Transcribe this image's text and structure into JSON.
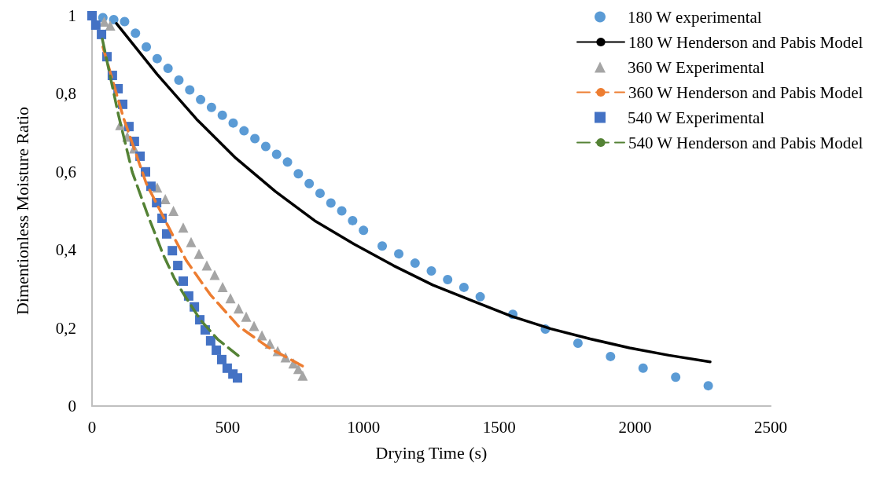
{
  "chart_data": {
    "type": "scatter",
    "xlabel": "Drying Time (s)",
    "ylabel": "Dimentionless Moisture Ratio",
    "xlim": [
      0,
      2500
    ],
    "xticks": [
      0,
      500,
      1000,
      1500,
      2000,
      2500
    ],
    "ylim": [
      0,
      1
    ],
    "yticks": [
      0,
      {
        "value": 0.2,
        "label": "0,2"
      },
      {
        "value": 0.4,
        "label": "0,4"
      },
      {
        "value": 0.6,
        "label": "0,6"
      },
      {
        "value": 0.8,
        "label": "0,8"
      },
      1
    ],
    "grid": false,
    "legend": "top right",
    "series": [
      {
        "name": "180 W experimental",
        "marker": "circle",
        "color": "#5b9bd5",
        "x": [
          40,
          80,
          120,
          160,
          200,
          240,
          280,
          320,
          360,
          400,
          440,
          480,
          520,
          560,
          600,
          640,
          680,
          720,
          760,
          800,
          840,
          880,
          920,
          960,
          1000,
          1069,
          1130,
          1190,
          1250,
          1310,
          1370,
          1430,
          1550,
          1670,
          1790,
          1910,
          2030,
          2150,
          2270
        ],
        "values": [
          0.995,
          0.99,
          0.985,
          0.955,
          0.92,
          0.89,
          0.865,
          0.835,
          0.81,
          0.785,
          0.765,
          0.745,
          0.725,
          0.705,
          0.685,
          0.665,
          0.645,
          0.625,
          0.595,
          0.57,
          0.545,
          0.52,
          0.5,
          0.475,
          0.45,
          0.41,
          0.39,
          0.366,
          0.346,
          0.324,
          0.304,
          0.28,
          0.235,
          0.197,
          0.161,
          0.127,
          0.097,
          0.074,
          0.052
        ]
      },
      {
        "name": "180 W Henderson and Pabis Model",
        "type": "line",
        "marker": "none",
        "line_style": "solid",
        "color": "#000000",
        "x": [
          90,
          240,
          385,
          530,
          675,
          820,
          965,
          1110,
          1255,
          1400,
          1545,
          1690,
          1835,
          1980,
          2125,
          2277
        ],
        "values": [
          0.98,
          0.85,
          0.735,
          0.635,
          0.55,
          0.475,
          0.415,
          0.36,
          0.31,
          0.27,
          0.23,
          0.198,
          0.172,
          0.149,
          0.13,
          0.113
        ]
      },
      {
        "name": "360 W Experimental",
        "marker": "triangle",
        "color": "#a5a5a5",
        "x": [
          45,
          67,
          104,
          130,
          155,
          240,
          270,
          300,
          336,
          365,
          394,
          423,
          452,
          481,
          510,
          540,
          568,
          597,
          626,
          655,
          684,
          713,
          742,
          760,
          776
        ],
        "values": [
          0.985,
          0.975,
          0.72,
          0.69,
          0.66,
          0.56,
          0.53,
          0.5,
          0.457,
          0.42,
          0.39,
          0.36,
          0.336,
          0.305,
          0.276,
          0.25,
          0.229,
          0.205,
          0.181,
          0.16,
          0.141,
          0.125,
          0.109,
          0.095,
          0.078
        ]
      },
      {
        "name": "360 W Henderson and Pabis Model",
        "type": "line",
        "marker": "none",
        "line_style": "dashed",
        "color": "#ed7d31",
        "x": [
          40,
          116,
          200,
          298,
          348,
          435,
          539,
          650,
          782
        ],
        "values": [
          0.92,
          0.738,
          0.57,
          0.437,
          0.372,
          0.286,
          0.205,
          0.15,
          0.1
        ]
      },
      {
        "name": "540 W Experimental",
        "marker": "square",
        "color": "#4472c4",
        "x": [
          0,
          14,
          35,
          55,
          75,
          96,
          113,
          136,
          156,
          177,
          197,
          217,
          238,
          258,
          275,
          296,
          316,
          336,
          356,
          377,
          397,
          417,
          437,
          458,
          478,
          498,
          519,
          536
        ],
        "values": [
          1.0,
          0.976,
          0.952,
          0.895,
          0.847,
          0.813,
          0.773,
          0.716,
          0.678,
          0.64,
          0.6,
          0.563,
          0.521,
          0.481,
          0.441,
          0.398,
          0.36,
          0.32,
          0.282,
          0.254,
          0.221,
          0.195,
          0.167,
          0.143,
          0.119,
          0.097,
          0.082,
          0.072
        ]
      },
      {
        "name": "540 W Henderson and Pabis Model",
        "type": "line",
        "marker": "none",
        "line_style": "dashed",
        "color": "#548235",
        "x": [
          38,
          96,
          148,
          205,
          261,
          304,
          333,
          400,
          463,
          539
        ],
        "values": [
          0.94,
          0.75,
          0.6,
          0.49,
          0.39,
          0.326,
          0.292,
          0.22,
          0.171,
          0.129
        ]
      }
    ]
  }
}
